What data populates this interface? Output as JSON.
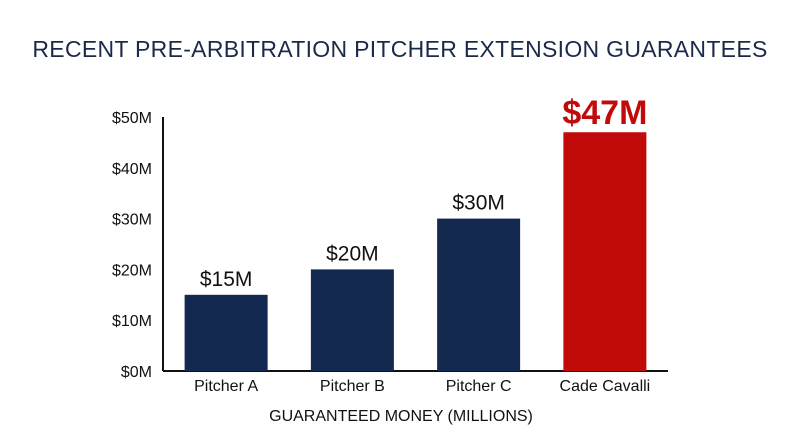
{
  "chart_data": {
    "type": "bar",
    "title": "RECENT PRE-ARBITRATION PITCHER EXTENSION GUARANTEES",
    "xlabel": "GUARANTEED MONEY (MILLIONS)",
    "ylabel": "",
    "categories": [
      "Pitcher A",
      "Pitcher B",
      "Pitcher C",
      "Cade Cavalli"
    ],
    "values": [
      15,
      20,
      30,
      47
    ],
    "data_labels": [
      "$15M",
      "$20M",
      "$30M",
      "$47M"
    ],
    "ylim": [
      0,
      50
    ],
    "yticks": [
      0,
      10,
      20,
      30,
      40,
      50
    ],
    "ytick_labels": [
      "$0M",
      "$10M",
      "$20M",
      "$30M",
      "$40M",
      "$50M"
    ],
    "grid": false,
    "colors": {
      "default_bar": "#14294f",
      "highlight_bar": "#c10a0a",
      "title": "#1b2a4a",
      "axis": "#111111"
    },
    "highlight_index": 3
  }
}
